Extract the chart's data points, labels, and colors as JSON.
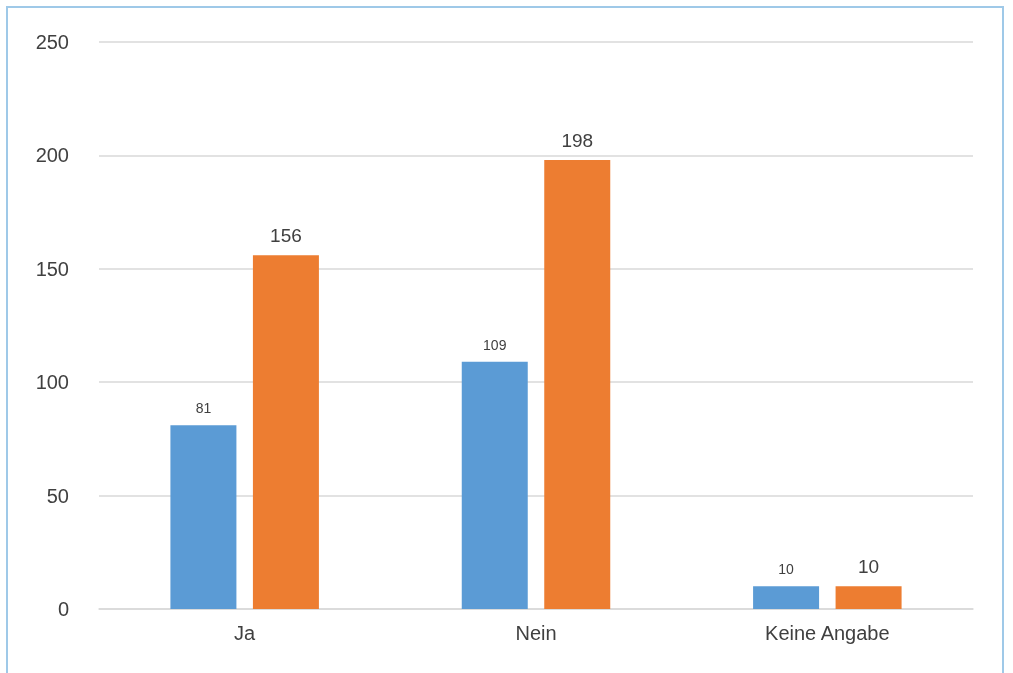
{
  "chart_data": {
    "type": "bar",
    "categories": [
      "Ja",
      "Nein",
      "Keine Angabe"
    ],
    "series": [
      {
        "color": "#5b9bd5",
        "values": [
          81,
          109,
          10
        ]
      },
      {
        "color": "#ed7d31",
        "values": [
          156,
          198,
          10
        ]
      }
    ],
    "ylim": [
      0,
      250
    ],
    "yticks": [
      0,
      50,
      100,
      150,
      200,
      250
    ],
    "grid": "y",
    "data_labels": true
  }
}
